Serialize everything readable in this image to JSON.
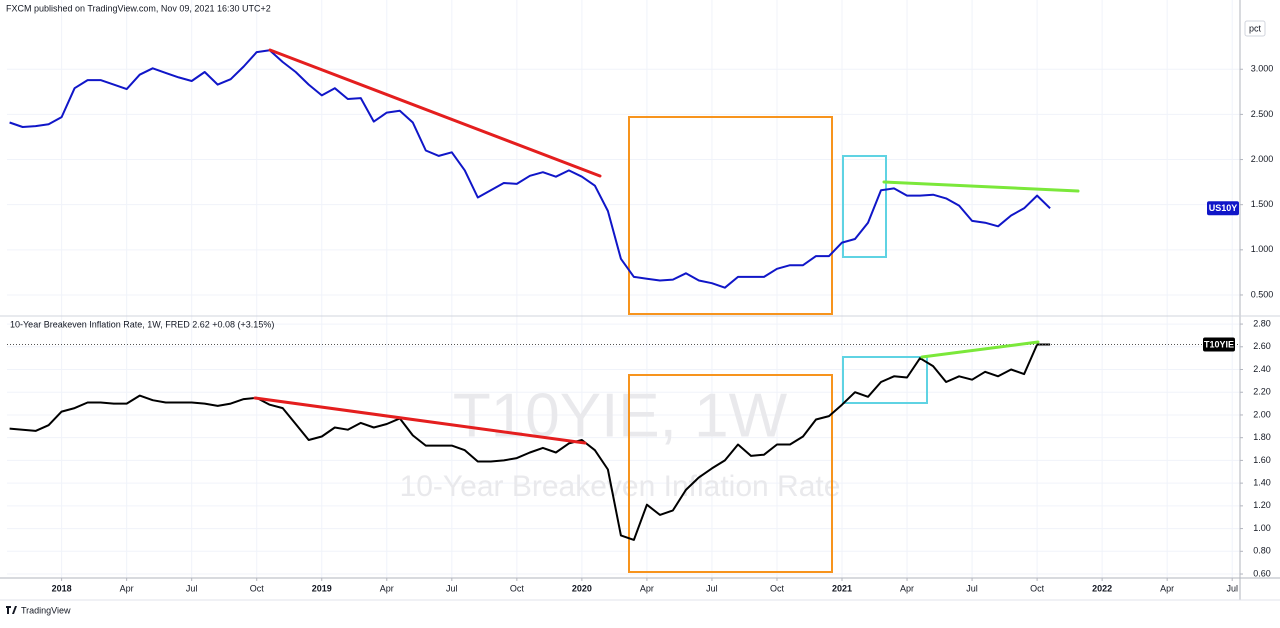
{
  "published": "FXCM published on TradingView.com, Nov 09, 2021 16:30 UTC+2",
  "brand": "TradingView",
  "scale_mode": "pct",
  "chart_data": [
    {
      "type": "line",
      "x": [
        2017.8,
        2017.85,
        2017.9,
        2017.95,
        2018,
        2018.05,
        2018.1,
        2018.15,
        2018.2,
        2018.25,
        2018.3,
        2018.35,
        2018.4,
        2018.45,
        2018.5,
        2018.55,
        2018.6,
        2018.65,
        2018.7,
        2018.75,
        2018.8,
        2018.85,
        2018.9,
        2018.95,
        2019,
        2019.05,
        2019.1,
        2019.15,
        2019.2,
        2019.25,
        2019.3,
        2019.35,
        2019.4,
        2019.45,
        2019.5,
        2019.55,
        2019.6,
        2019.65,
        2019.7,
        2019.75,
        2019.8,
        2019.85,
        2019.9,
        2019.95,
        2020,
        2020.05,
        2020.1,
        2020.15,
        2020.2,
        2020.25,
        2020.3,
        2020.35,
        2020.4,
        2020.45,
        2020.5,
        2020.55,
        2020.6,
        2020.65,
        2020.7,
        2020.75,
        2020.8,
        2020.85,
        2020.9,
        2020.95,
        2021,
        2021.05,
        2021.1,
        2021.15,
        2021.2,
        2021.25,
        2021.3,
        2021.35,
        2021.4,
        2021.45,
        2021.5,
        2021.55,
        2021.6,
        2021.65,
        2021.7,
        2021.75,
        2021.8
      ],
      "series": [
        {
          "name": "US10Y",
          "color": "#1016c8",
          "values": [
            2.41,
            2.36,
            2.37,
            2.39,
            2.47,
            2.79,
            2.88,
            2.88,
            2.83,
            2.78,
            2.94,
            3.01,
            2.96,
            2.91,
            2.87,
            2.97,
            2.83,
            2.89,
            3.03,
            3.19,
            3.21,
            3.08,
            2.97,
            2.83,
            2.71,
            2.79,
            2.67,
            2.68,
            2.42,
            2.52,
            2.54,
            2.41,
            2.1,
            2.04,
            2.08,
            1.88,
            1.58,
            1.66,
            1.74,
            1.73,
            1.82,
            1.86,
            1.81,
            1.88,
            1.81,
            1.71,
            1.43,
            0.9,
            0.7,
            0.68,
            0.66,
            0.67,
            0.74,
            0.66,
            0.63,
            0.58,
            0.7,
            0.7,
            0.7,
            0.79,
            0.83,
            0.83,
            0.93,
            0.93,
            1.08,
            1.12,
            1.3,
            1.66,
            1.68,
            1.6,
            1.6,
            1.61,
            1.57,
            1.49,
            1.32,
            1.3,
            1.26,
            1.38,
            1.46,
            1.6,
            1.46
          ]
        }
      ],
      "xlim": [
        2017.79,
        2022.53
      ],
      "ylim": [
        0.267,
        3.767
      ],
      "yticks": [
        {
          "value": 0.5,
          "label": "0.500"
        },
        {
          "value": 1,
          "label": "1.000"
        },
        {
          "value": 1.5,
          "label": "1.500"
        },
        {
          "value": 2,
          "label": "2.000"
        },
        {
          "value": 2.5,
          "label": "2.500"
        },
        {
          "value": 3,
          "label": "3.000"
        }
      ],
      "grid": true
    },
    {
      "type": "line",
      "legend": "10-Year Breakeven Inflation Rate, 1W, FRED  2.62  +0.08 (+3.15%)",
      "watermark": "T10YIE, 1W",
      "watermark_subtitle": "10-Year Breakeven Inflation Rate",
      "x": [
        2017.8,
        2017.85,
        2017.9,
        2017.95,
        2018,
        2018.05,
        2018.1,
        2018.15,
        2018.2,
        2018.25,
        2018.3,
        2018.35,
        2018.4,
        2018.45,
        2018.5,
        2018.55,
        2018.6,
        2018.65,
        2018.7,
        2018.75,
        2018.8,
        2018.85,
        2018.9,
        2018.95,
        2019,
        2019.05,
        2019.1,
        2019.15,
        2019.2,
        2019.25,
        2019.3,
        2019.35,
        2019.4,
        2019.45,
        2019.5,
        2019.55,
        2019.6,
        2019.65,
        2019.7,
        2019.75,
        2019.8,
        2019.85,
        2019.9,
        2019.95,
        2020,
        2020.05,
        2020.1,
        2020.15,
        2020.2,
        2020.25,
        2020.3,
        2020.35,
        2020.4,
        2020.45,
        2020.5,
        2020.55,
        2020.6,
        2020.65,
        2020.7,
        2020.75,
        2020.8,
        2020.85,
        2020.9,
        2020.95,
        2021,
        2021.05,
        2021.1,
        2021.15,
        2021.2,
        2021.25,
        2021.3,
        2021.35,
        2021.4,
        2021.45,
        2021.5,
        2021.55,
        2021.6,
        2021.65,
        2021.7,
        2021.75,
        2021.8
      ],
      "series": [
        {
          "name": "T10YIE",
          "color": "#000000",
          "values": [
            1.88,
            1.87,
            1.86,
            1.91,
            2.03,
            2.06,
            2.11,
            2.11,
            2.1,
            2.1,
            2.17,
            2.13,
            2.11,
            2.11,
            2.11,
            2.1,
            2.08,
            2.1,
            2.14,
            2.15,
            2.09,
            2.06,
            1.92,
            1.78,
            1.81,
            1.89,
            1.87,
            1.93,
            1.89,
            1.92,
            1.97,
            1.82,
            1.73,
            1.73,
            1.73,
            1.69,
            1.59,
            1.59,
            1.6,
            1.62,
            1.67,
            1.71,
            1.67,
            1.75,
            1.78,
            1.69,
            1.52,
            0.94,
            0.9,
            1.21,
            1.12,
            1.16,
            1.34,
            1.45,
            1.53,
            1.6,
            1.74,
            1.64,
            1.65,
            1.74,
            1.74,
            1.81,
            1.96,
            1.99,
            2.09,
            2.2,
            2.16,
            2.29,
            2.34,
            2.33,
            2.5,
            2.43,
            2.29,
            2.34,
            2.31,
            2.38,
            2.34,
            2.4,
            2.36,
            2.62,
            2.62
          ]
        }
      ],
      "xlim": [
        2017.79,
        2022.53
      ],
      "xticks": [
        2018,
        {
          "value": 2018.25,
          "label": "Apr"
        },
        {
          "value": 2018.5,
          "label": "Jul"
        },
        {
          "value": 2018.75,
          "label": "Oct"
        },
        2019,
        {
          "value": 2019.25,
          "label": "Apr"
        },
        {
          "value": 2019.5,
          "label": "Jul"
        },
        {
          "value": 2019.75,
          "label": "Oct"
        },
        2020,
        {
          "value": 2020.25,
          "label": "Apr"
        },
        {
          "value": 2020.5,
          "label": "Jul"
        },
        {
          "value": 2020.75,
          "label": "Oct"
        },
        2021,
        {
          "value": 2021.25,
          "label": "Apr"
        },
        {
          "value": 2021.5,
          "label": "Jul"
        },
        {
          "value": 2021.75,
          "label": "Oct"
        },
        2022,
        {
          "value": 2022.25,
          "label": "Apr"
        },
        {
          "value": 2022.5,
          "label": "Jul"
        }
      ],
      "ylim": [
        0.565,
        2.871
      ],
      "yticks": [
        {
          "value": 0.6,
          "label": "0.60"
        },
        {
          "value": 0.8,
          "label": "0.80"
        },
        {
          "value": 1,
          "label": "1.00"
        },
        {
          "value": 1.2,
          "label": "1.20"
        },
        {
          "value": 1.4,
          "label": "1.40"
        },
        {
          "value": 1.6,
          "label": "1.60"
        },
        {
          "value": 1.8,
          "label": "1.80"
        },
        {
          "value": 2,
          "label": "2.00"
        },
        {
          "value": 2.2,
          "label": "2.20"
        },
        {
          "value": 2.4,
          "label": "2.40"
        },
        {
          "value": 2.6,
          "label": "2.60"
        },
        {
          "value": 2.8,
          "label": "2.80"
        }
      ],
      "grid": true
    }
  ]
}
